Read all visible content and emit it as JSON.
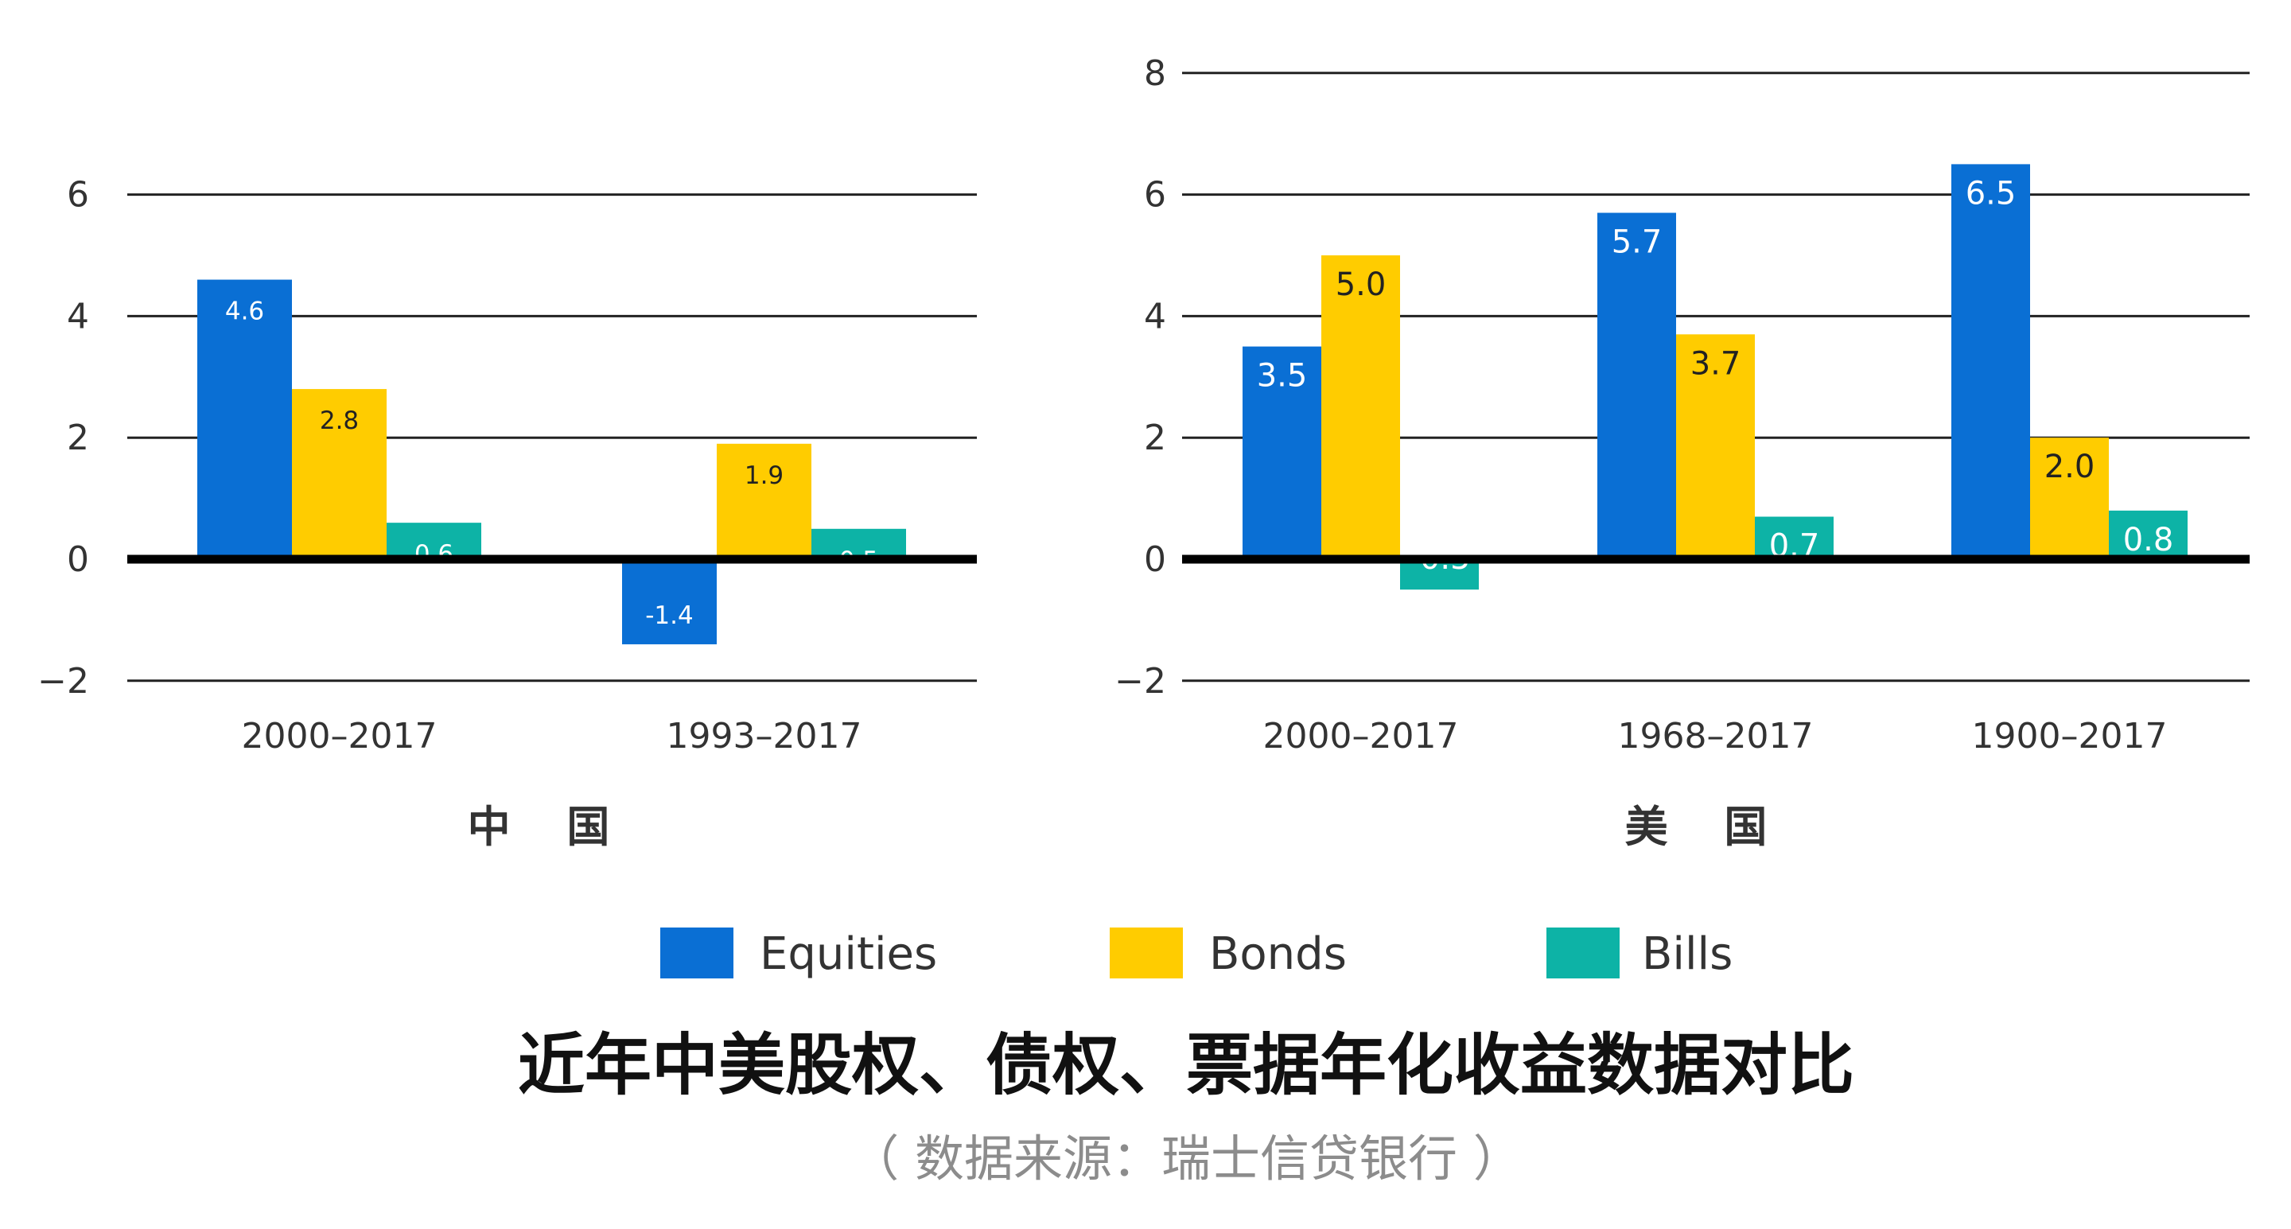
{
  "chart_data": [
    {
      "type": "bar",
      "panel_label": "中 国",
      "categories": [
        "2000–2017",
        "1993–2017"
      ],
      "series": [
        {
          "name": "Equities",
          "values": [
            4.6,
            -1.4
          ]
        },
        {
          "name": "Bonds",
          "values": [
            2.8,
            1.9
          ]
        },
        {
          "name": "Bills",
          "values": [
            0.6,
            0.5
          ]
        }
      ],
      "yticks": [
        "6",
        "4",
        "2",
        "0",
        "−2"
      ],
      "ylim": [
        -2,
        6
      ],
      "grid": true
    },
    {
      "type": "bar",
      "panel_label": "美 国",
      "categories": [
        "2000–2017",
        "1968–2017",
        "1900–2017"
      ],
      "series": [
        {
          "name": "Equities",
          "values": [
            3.5,
            5.7,
            6.5
          ]
        },
        {
          "name": "Bonds",
          "values": [
            5.0,
            3.7,
            2.0
          ]
        },
        {
          "name": "Bills",
          "values": [
            -0.5,
            0.7,
            0.8
          ]
        }
      ],
      "yticks": [
        "8",
        "6",
        "4",
        "2",
        "0",
        "−2"
      ],
      "ylim": [
        -2,
        8
      ],
      "grid": true
    }
  ],
  "legend": {
    "placement": "bottom",
    "items": [
      {
        "label": "Equities",
        "color": "#0a6fd4"
      },
      {
        "label": "Bonds",
        "color": "#ffcc00"
      },
      {
        "label": "Bills",
        "color": "#0db3a6"
      }
    ]
  },
  "title": "近年中美股权、债权、票据年化收益数据对比",
  "source": "（ 数据来源：瑞士信贷银行 ）"
}
